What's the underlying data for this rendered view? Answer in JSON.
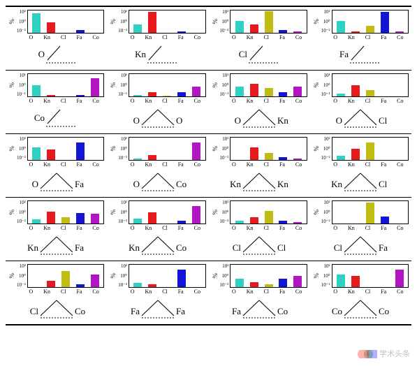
{
  "categories": [
    "O",
    "Kn",
    "Cl",
    "Fa",
    "Co"
  ],
  "ylabel": "%",
  "yticks": [
    "10²",
    "10⁰",
    "10⁻²"
  ],
  "ytick_alt": [
    "10¹",
    "10⁰",
    "10⁻¹"
  ],
  "bar_colors": [
    "#2fd1c5",
    "#e6191e",
    "#c0bc12",
    "#1414d6",
    "#b115c4"
  ],
  "bg": "#ffffff",
  "border": "#000000",
  "diagram_fontsize": 13,
  "charts": [
    {
      "values": [
        2.3,
        1.2,
        0.0,
        0.3,
        0.0
      ],
      "ticks": "std",
      "diag": [
        "O"
      ]
    },
    {
      "values": [
        1.0,
        2.4,
        0.0,
        0.2,
        0.0
      ],
      "ticks": "std",
      "diag": [
        "Kn"
      ]
    },
    {
      "values": [
        1.4,
        1.0,
        2.5,
        0.3,
        0.15
      ],
      "ticks": "std",
      "diag": [
        "Cl"
      ]
    },
    {
      "values": [
        1.4,
        0.2,
        0.8,
        2.4,
        0.15
      ],
      "ticks": "std",
      "diag": [
        "Fa"
      ]
    },
    {
      "values": [
        1.3,
        0.15,
        0.0,
        0.15,
        2.1
      ],
      "ticks": "alt",
      "diag": [
        "Co"
      ]
    },
    {
      "values": [
        0.15,
        0.5,
        0.1,
        0.5,
        1.1
      ],
      "ticks": "alt",
      "diag": [
        "O",
        "O"
      ]
    },
    {
      "values": [
        1.1,
        1.5,
        1.0,
        0.5,
        1.1
      ],
      "ticks": "alt",
      "diag": [
        "O",
        "Kn"
      ]
    },
    {
      "values": [
        0.3,
        1.3,
        0.7,
        0.0,
        0.0
      ],
      "ticks": "alt",
      "diag": [
        "O",
        "Cl"
      ]
    },
    {
      "values": [
        1.5,
        1.2,
        0.0,
        2.0,
        0.0
      ],
      "ticks": "std",
      "diag": [
        "O",
        "Fa"
      ]
    },
    {
      "values": [
        0.15,
        0.6,
        0.0,
        0.0,
        2.0
      ],
      "ticks": "std",
      "diag": [
        "O",
        "Co"
      ]
    },
    {
      "values": [
        0.0,
        1.5,
        0.8,
        0.3,
        0.15
      ],
      "ticks": "std",
      "diag": [
        "Kn",
        "Kn"
      ]
    },
    {
      "values": [
        0.5,
        1.3,
        2.0,
        0.0,
        0.0
      ],
      "ticks": "std",
      "diag": [
        "Kn",
        "Cl"
      ]
    },
    {
      "values": [
        0.5,
        1.4,
        0.7,
        1.2,
        1.1
      ],
      "ticks": "std",
      "diag": [
        "Kn",
        "Fa"
      ]
    },
    {
      "values": [
        0.6,
        1.3,
        0.0,
        0.3,
        2.0
      ],
      "ticks": "std",
      "diag": [
        "Kn",
        "Co"
      ]
    },
    {
      "values": [
        0.3,
        0.7,
        1.5,
        0.3,
        0.15
      ],
      "ticks": "std",
      "diag": [
        "Cl",
        "Cl"
      ]
    },
    {
      "values": [
        0.0,
        0.0,
        2.4,
        0.8,
        0.0
      ],
      "ticks": "std",
      "diag": [
        "Cl",
        "Fa"
      ]
    },
    {
      "values": [
        0.0,
        0.7,
        1.9,
        0.3,
        1.5
      ],
      "ticks": "std",
      "diag": [
        "Cl",
        "Co"
      ]
    },
    {
      "values": [
        0.5,
        0.3,
        0.0,
        2.0,
        0.0
      ],
      "ticks": "std",
      "diag": [
        "Fa",
        "Fa"
      ]
    },
    {
      "values": [
        1.0,
        0.6,
        0.3,
        1.0,
        1.3
      ],
      "ticks": "std",
      "diag": [
        "Fa",
        "Co"
      ]
    },
    {
      "values": [
        1.5,
        1.3,
        0.0,
        0.0,
        2.0
      ],
      "ticks": "std",
      "diag": [
        "Co",
        "Co"
      ]
    }
  ],
  "watermark": "学术头条"
}
